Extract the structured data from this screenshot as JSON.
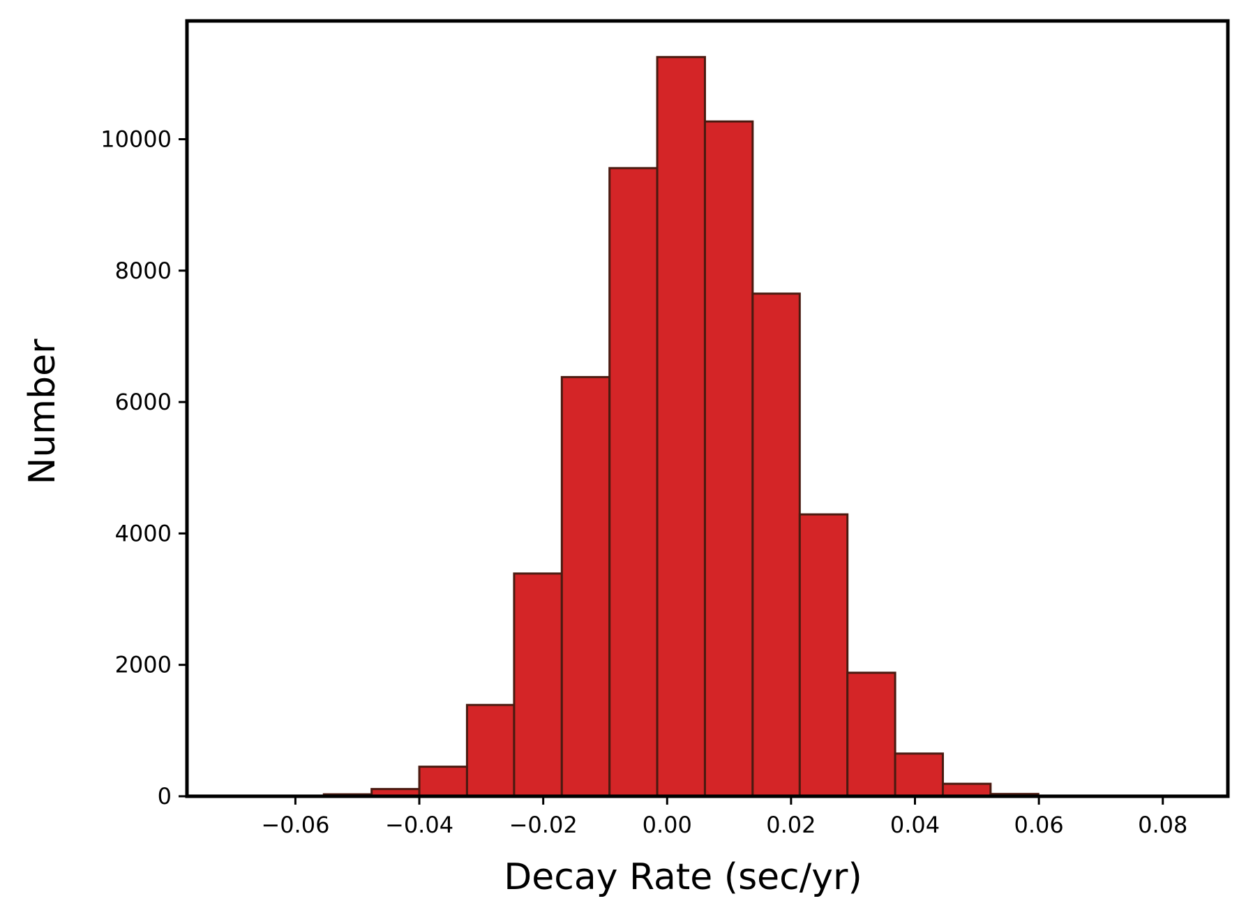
{
  "chart_data": {
    "type": "bar",
    "histogram": true,
    "title": "",
    "xlabel": "Decay Rate (sec/yr)",
    "ylabel": "Number",
    "xlim": [
      -0.0775,
      0.0905
    ],
    "ylim": [
      0,
      11800
    ],
    "grid": false,
    "legend": "none",
    "bar_color": "#d42527",
    "edge_color": "#4a1a10",
    "bin_edges": [
      -0.0708,
      -0.0631,
      -0.0554,
      -0.0477,
      -0.04,
      -0.0323,
      -0.0247,
      -0.017,
      -0.0093,
      -0.0016,
      0.0061,
      0.0138,
      0.0214,
      0.0291,
      0.0368,
      0.0445,
      0.0522,
      0.0599,
      0.0676,
      0.0753,
      0.083
    ],
    "values": [
      2,
      8,
      30,
      110,
      450,
      1390,
      3390,
      6380,
      9560,
      11250,
      10270,
      7650,
      4290,
      1880,
      650,
      190,
      35,
      6,
      2,
      1
    ],
    "x_ticks": [
      {
        "value": -0.06,
        "label": "−0.06"
      },
      {
        "value": -0.04,
        "label": "−0.04"
      },
      {
        "value": -0.02,
        "label": "−0.02"
      },
      {
        "value": 0.0,
        "label": "0.00"
      },
      {
        "value": 0.02,
        "label": "0.02"
      },
      {
        "value": 0.04,
        "label": "0.04"
      },
      {
        "value": 0.06,
        "label": "0.06"
      },
      {
        "value": 0.08,
        "label": "0.08"
      }
    ],
    "y_ticks": [
      {
        "value": 0,
        "label": "0"
      },
      {
        "value": 2000,
        "label": "2000"
      },
      {
        "value": 4000,
        "label": "4000"
      },
      {
        "value": 6000,
        "label": "6000"
      },
      {
        "value": 8000,
        "label": "8000"
      },
      {
        "value": 10000,
        "label": "10000"
      }
    ]
  }
}
